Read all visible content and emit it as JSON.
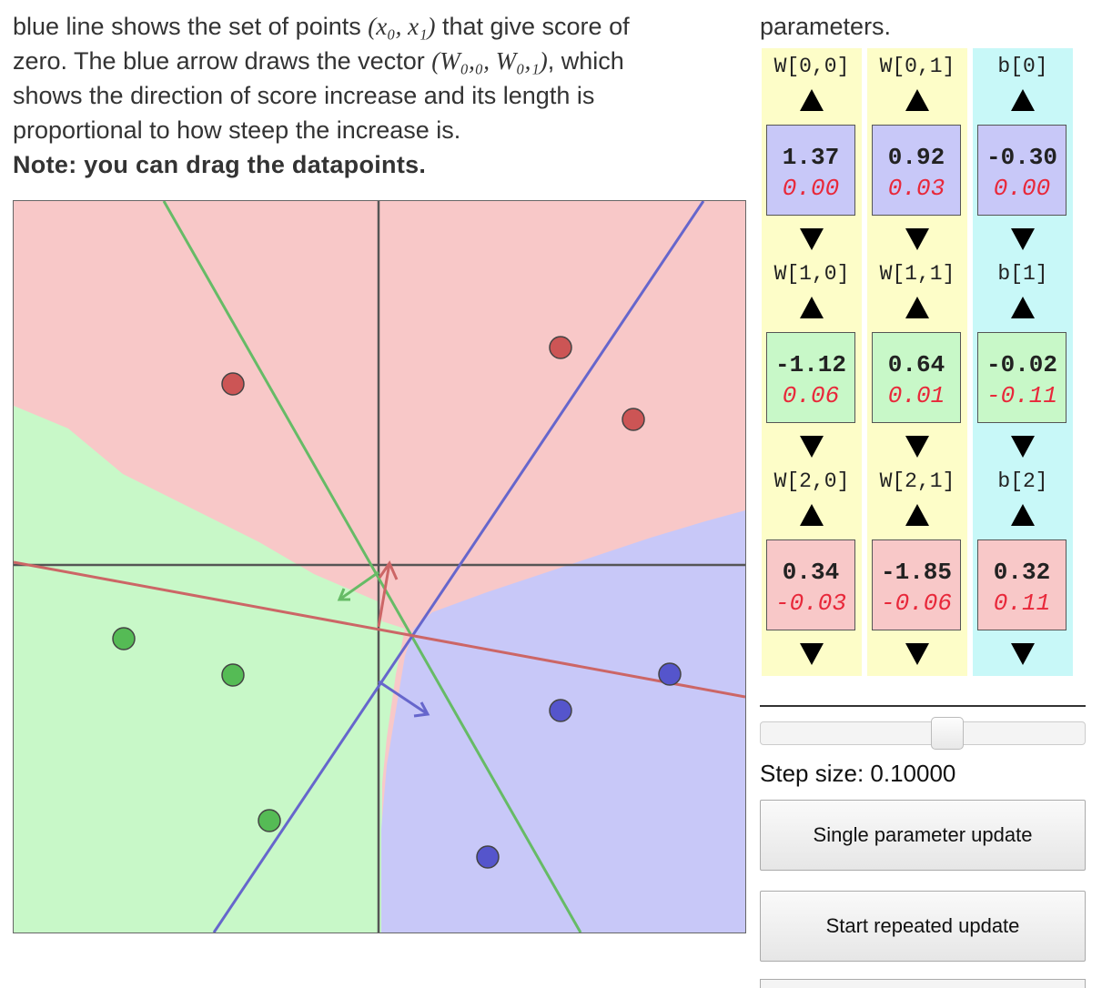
{
  "intro": {
    "line1_a": "blue line shows the set of points ",
    "line1_math": "(x₀, x₁)",
    "line1_b": " that give score of",
    "line2_a": "zero. The blue arrow draws the vector ",
    "line2_math": "(W₀,₀, W₀,₁)",
    "line2_b": ", which",
    "line3": "shows  the  direction  of  score  increase  and  its  length  is",
    "line4": "proportional to how steep the increase is.",
    "note": "Note: you can drag the datapoints.",
    "right_top": "parameters."
  },
  "plot": {
    "colors": {
      "red_region": "#f8c8c8",
      "green_region": "#c8f8c8",
      "blue_region": "#c8c8f8",
      "red_line": "#cc6666",
      "green_line": "#66bb66",
      "blue_line": "#6666cc",
      "red_point": "#cc5555",
      "green_point": "#55bb55",
      "blue_point": "#5555cc"
    },
    "red_points_label": "red class",
    "green_points_label": "green class",
    "blue_points_label": "blue class"
  },
  "params": {
    "rows": [
      {
        "color": "#c8c8f8",
        "labels": [
          "W[0,0]",
          "W[0,1]",
          "b[0]"
        ],
        "values": [
          "1.37",
          "0.92",
          "-0.30"
        ],
        "grads": [
          "0.00",
          "0.03",
          "0.00"
        ]
      },
      {
        "color": "#c8f8c8",
        "labels": [
          "W[1,0]",
          "W[1,1]",
          "b[1]"
        ],
        "values": [
          "-1.12",
          "0.64",
          "-0.02"
        ],
        "grads": [
          "0.06",
          "0.01",
          "-0.11"
        ]
      },
      {
        "color": "#f8c8c8",
        "labels": [
          "W[2,0]",
          "W[2,1]",
          "b[2]"
        ],
        "values": [
          "0.34",
          "-1.85",
          "0.32"
        ],
        "grads": [
          "-0.03",
          "-0.06",
          "0.11"
        ]
      }
    ],
    "weight_col_color": "#fdfdc8",
    "bias_col_color": "#c8f8f8"
  },
  "controls": {
    "step_label": "Step size: 0.10000",
    "step_value_fraction": 0.58,
    "single_update": "Single parameter update",
    "repeated_update": "Start repeated update"
  }
}
